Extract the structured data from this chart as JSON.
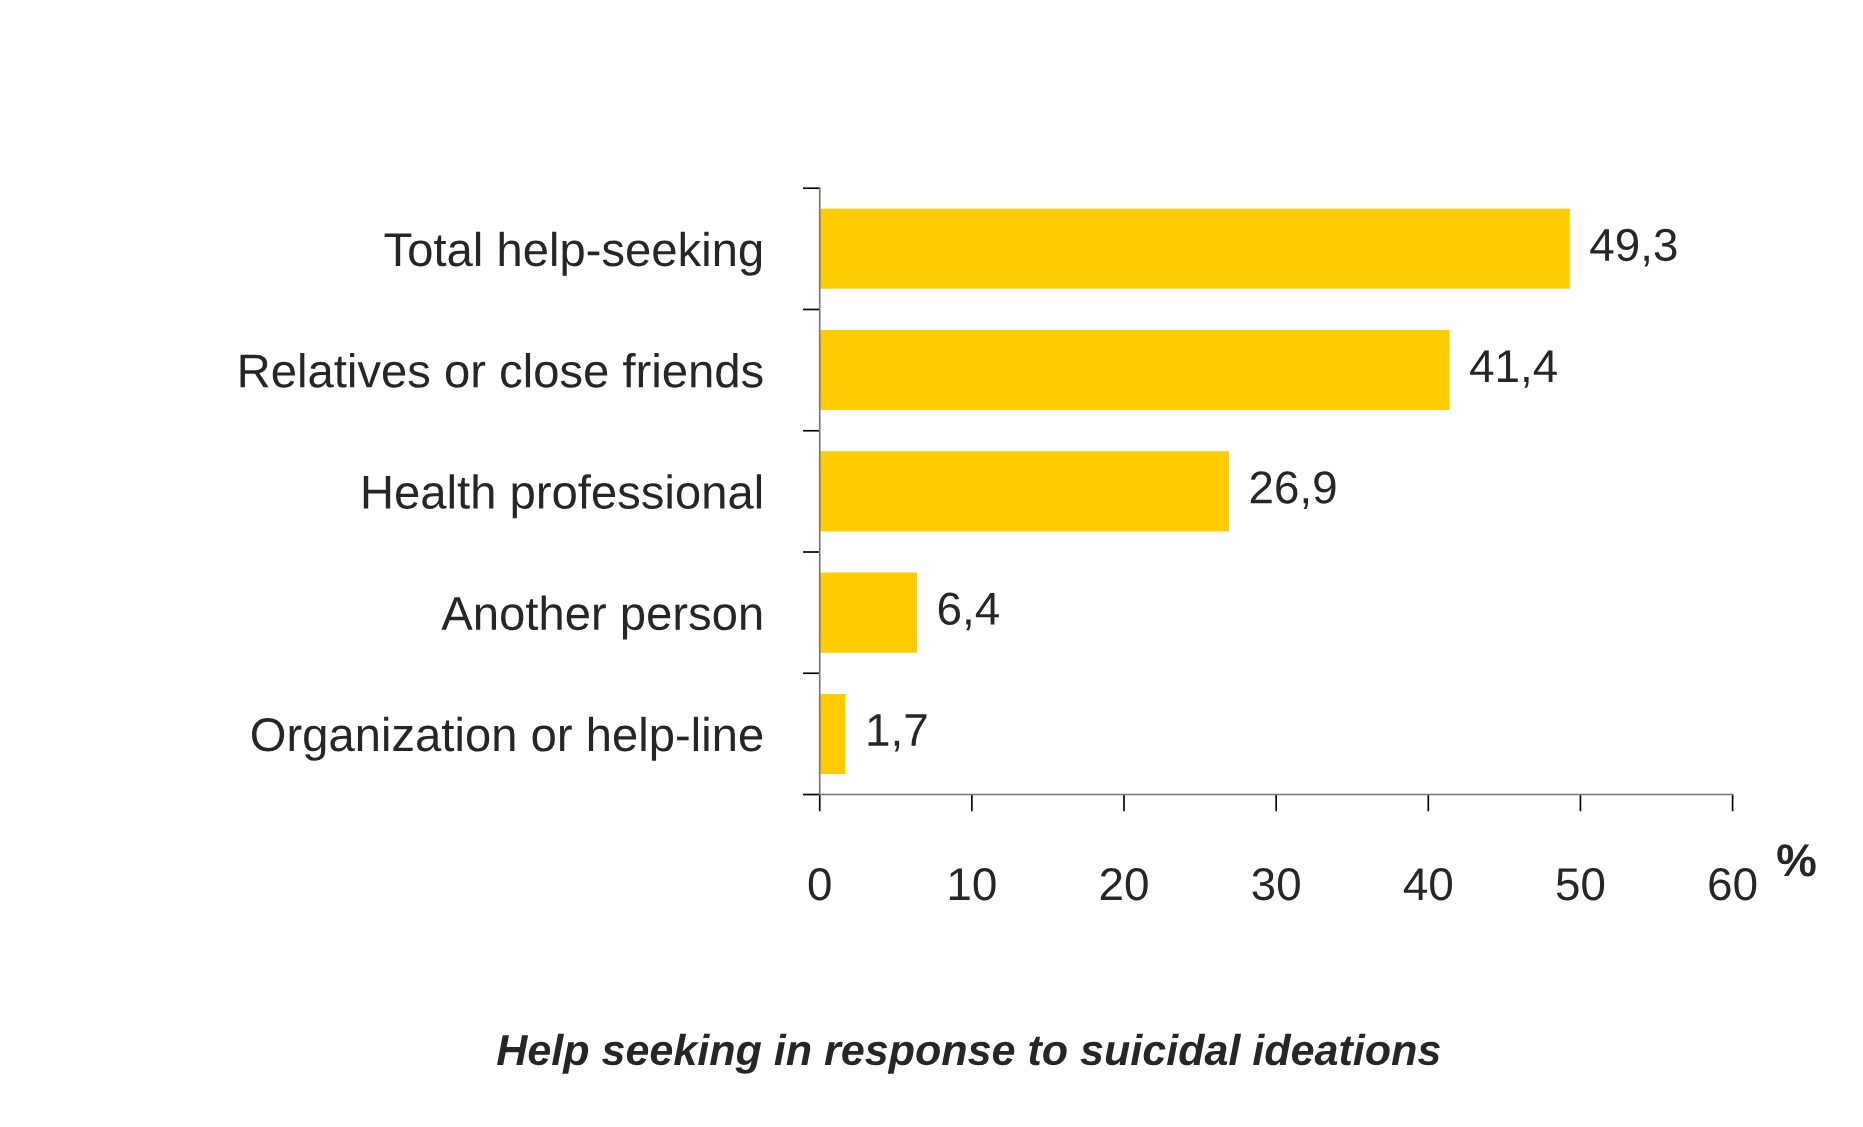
{
  "chart_data": {
    "type": "bar",
    "orientation": "horizontal",
    "title": "Help seeking in response to suicidal ideations",
    "xlabel": "%",
    "categories": [
      "Total help-seeking",
      "Relatives or close friends",
      "Health professional",
      "Another person",
      "Organization or help-line"
    ],
    "values": [
      49.3,
      41.4,
      26.9,
      6.4,
      1.7
    ],
    "value_labels": [
      "49,3",
      "41,4",
      "26,9",
      "6,4",
      "1,7"
    ],
    "color": "#ffcc00",
    "xlim": [
      0,
      60
    ],
    "xticks": [
      0,
      10,
      20,
      30,
      40,
      50,
      60
    ],
    "grid": false,
    "legend": false
  }
}
